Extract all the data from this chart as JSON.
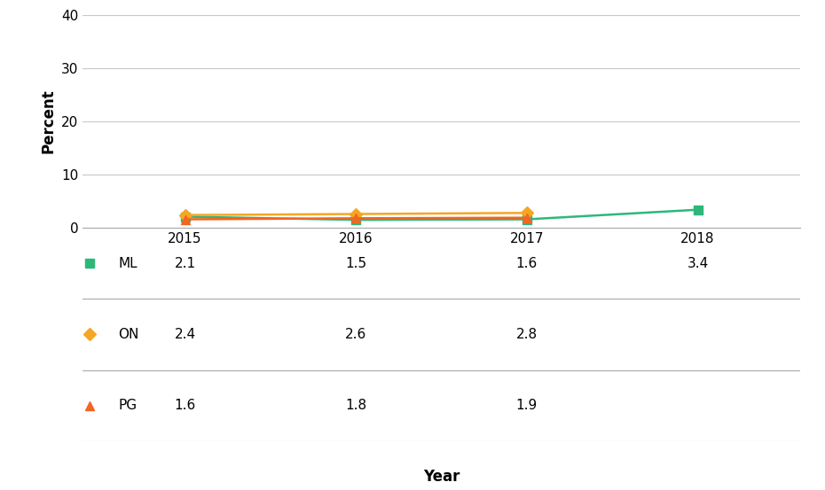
{
  "series": [
    {
      "label": "ML",
      "years": [
        2015,
        2016,
        2017,
        2018
      ],
      "values": [
        2.1,
        1.5,
        1.6,
        3.4
      ],
      "color": "#2db87a",
      "marker": "s"
    },
    {
      "label": "ON",
      "years": [
        2015,
        2016,
        2017
      ],
      "values": [
        2.4,
        2.6,
        2.8
      ],
      "color": "#f5a623",
      "marker": "D"
    },
    {
      "label": "PG",
      "years": [
        2015,
        2016,
        2017
      ],
      "values": [
        1.6,
        1.8,
        1.9
      ],
      "color": "#f26522",
      "marker": "^"
    }
  ],
  "table_rows": [
    {
      "label": "ML",
      "values": [
        "2.1",
        "1.5",
        "1.6",
        "3.4"
      ],
      "color": "#2db87a",
      "marker": "s"
    },
    {
      "label": "ON",
      "values": [
        "2.4",
        "2.6",
        "2.8",
        ""
      ],
      "color": "#f5a623",
      "marker": "D"
    },
    {
      "label": "PG",
      "values": [
        "1.6",
        "1.8",
        "1.9",
        ""
      ],
      "color": "#f26522",
      "marker": "^"
    }
  ],
  "table_years": [
    "2015",
    "2016",
    "2017",
    "2018"
  ],
  "ylabel": "Percent",
  "xlabel": "Year",
  "ylim": [
    0,
    40
  ],
  "yticks": [
    0,
    10,
    20,
    30,
    40
  ],
  "xticks": [
    2015,
    2016,
    2017,
    2018
  ],
  "xlim": [
    2014.4,
    2018.6
  ],
  "background_color": "#ffffff",
  "grid_color": "#c8c8c8",
  "linewidth": 1.8,
  "markersize": 7
}
